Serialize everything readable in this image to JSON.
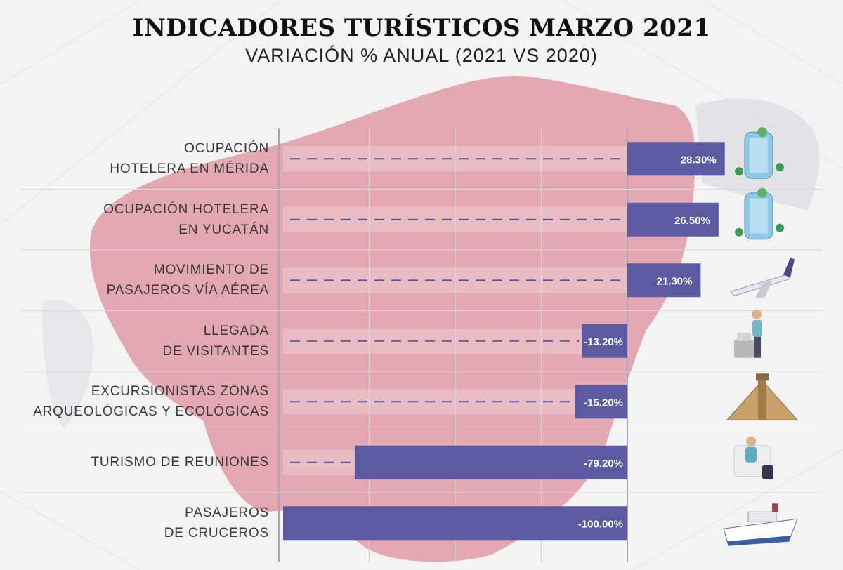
{
  "header": {
    "title": "INDICADORES TURÍSTICOS MARZO 2021",
    "subtitle": "VARIACIÓN % ANUAL (2021 VS 2020)"
  },
  "colors": {
    "bar": "#5b5aa3",
    "map": "#dd8f9c",
    "background": "#f3f3f4",
    "gridline": "#d9d9dd"
  },
  "chart_data": {
    "type": "bar",
    "orientation": "horizontal",
    "title": "INDICADORES TURÍSTICOS MARZO 2021",
    "subtitle": "VARIACIÓN % ANUAL (2021 VS 2020)",
    "categories": [
      "OCUPACIÓN\nHOTELERA EN MÉRIDA",
      "OCUPACIÓN HOTELERA\nEN YUCATÁN",
      "MOVIMIENTO DE\nPASAJEROS VÍA AÉREA",
      "LLEGADA\nDE VISITANTES",
      "EXCURSIONISTAS ZONAS\nARQUEOLÓGICAS Y ECOLÓGICAS",
      "TURISMO DE REUNIONES",
      "PASAJEROS\nDE CRUCEROS"
    ],
    "values": [
      28.3,
      26.5,
      21.3,
      -13.2,
      -15.2,
      -79.2,
      -100.0
    ],
    "data_labels": [
      "28.30%",
      "26.50%",
      "21.30%",
      "-13.20%",
      "-15.20%",
      "-79.20%",
      "-100.00%"
    ],
    "icons": [
      "hotel-icon",
      "hotel-icon",
      "airplane-icon",
      "traveler-luggage-icon",
      "pyramid-icon",
      "meeting-icon",
      "cruise-ship-icon"
    ],
    "xlim": [
      -100,
      30
    ],
    "grid": true,
    "legend": "none"
  }
}
